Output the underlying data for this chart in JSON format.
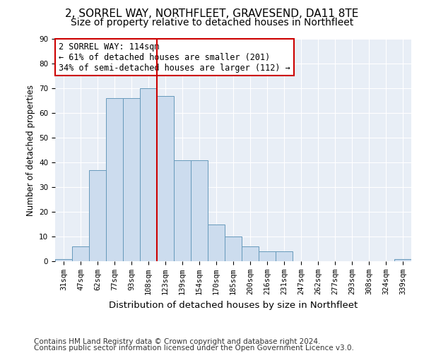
{
  "title1": "2, SORREL WAY, NORTHFLEET, GRAVESEND, DA11 8TE",
  "title2": "Size of property relative to detached houses in Northfleet",
  "xlabel": "Distribution of detached houses by size in Northfleet",
  "ylabel": "Number of detached properties",
  "categories": [
    "31sqm",
    "47sqm",
    "62sqm",
    "77sqm",
    "93sqm",
    "108sqm",
    "123sqm",
    "139sqm",
    "154sqm",
    "170sqm",
    "185sqm",
    "200sqm",
    "216sqm",
    "231sqm",
    "247sqm",
    "262sqm",
    "277sqm",
    "293sqm",
    "308sqm",
    "324sqm",
    "339sqm"
  ],
  "values": [
    1,
    6,
    37,
    66,
    66,
    70,
    67,
    41,
    41,
    15,
    10,
    6,
    4,
    4,
    0,
    0,
    0,
    0,
    0,
    0,
    1
  ],
  "bar_color": "#ccdcee",
  "bar_edge_color": "#6699bb",
  "vline_x": 5.5,
  "vline_color": "#cc0000",
  "ylim": [
    0,
    90
  ],
  "yticks": [
    0,
    10,
    20,
    30,
    40,
    50,
    60,
    70,
    80,
    90
  ],
  "annotation_line1": "2 SORREL WAY: 114sqm",
  "annotation_line2": "← 61% of detached houses are smaller (201)",
  "annotation_line3": "34% of semi-detached houses are larger (112) →",
  "annotation_box_color": "white",
  "annotation_box_edge": "#cc0000",
  "footer1": "Contains HM Land Registry data © Crown copyright and database right 2024.",
  "footer2": "Contains public sector information licensed under the Open Government Licence v3.0.",
  "plot_bg_color": "#e8eef6",
  "grid_color": "white",
  "title1_fontsize": 11,
  "title2_fontsize": 10,
  "xlabel_fontsize": 9.5,
  "ylabel_fontsize": 8.5,
  "tick_fontsize": 7.5,
  "annot_fontsize": 8.5,
  "footer_fontsize": 7.5
}
